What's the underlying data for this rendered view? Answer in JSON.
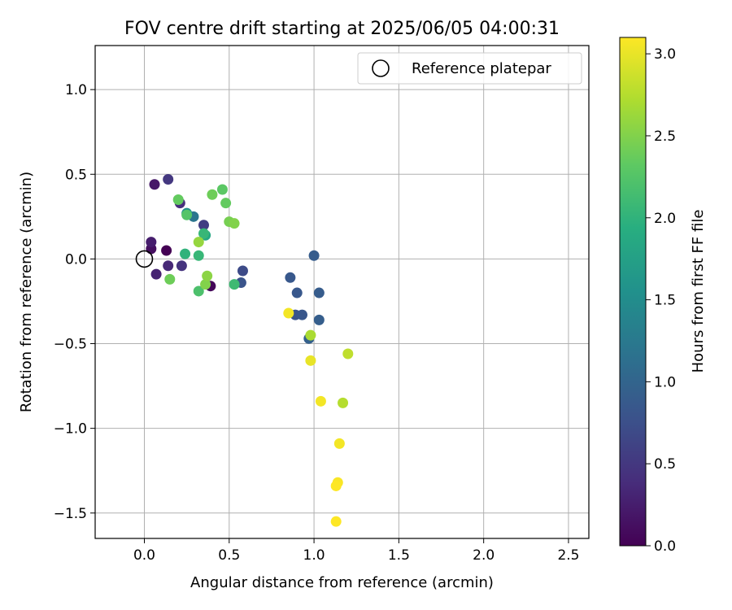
{
  "chart_data": {
    "type": "scatter",
    "title": "FOV centre drift starting at 2025/06/05 04:00:31",
    "xlabel": "Angular distance from reference (arcmin)",
    "ylabel": "Rotation from reference (arcmin)",
    "xlim": [
      -0.29,
      2.62
    ],
    "ylim": [
      -1.65,
      1.26
    ],
    "xticks": [
      0.0,
      0.5,
      1.0,
      1.5,
      2.0,
      2.5
    ],
    "xtick_labels": [
      "0.0",
      "0.5",
      "1.0",
      "1.5",
      "2.0",
      "2.5"
    ],
    "yticks": [
      1.0,
      0.5,
      0.0,
      -0.5,
      -1.0,
      -1.5
    ],
    "ytick_labels": [
      "1.0",
      "0.5",
      "0.0",
      "−0.5",
      "−1.0",
      "−1.5"
    ],
    "grid": true,
    "legend": {
      "placement": "top-right",
      "entries": [
        "Reference platepar"
      ]
    },
    "reference_point": {
      "x": 0.0,
      "y": 0.0
    },
    "colormap": "viridis",
    "colorbar": {
      "label": "Hours from first FF file",
      "range": [
        0.0,
        3.1
      ],
      "ticks": [
        0.0,
        0.5,
        1.0,
        1.5,
        2.0,
        2.5,
        3.0
      ],
      "tick_labels": [
        "0.0",
        "0.5",
        "1.0",
        "1.5",
        "2.0",
        "2.5",
        "3.0"
      ]
    },
    "points": [
      {
        "x": 0.13,
        "y": 0.05,
        "hours": 0.0
      },
      {
        "x": 0.39,
        "y": -0.16,
        "hours": 0.05
      },
      {
        "x": 0.04,
        "y": 0.06,
        "hours": 0.12
      },
      {
        "x": 0.06,
        "y": 0.44,
        "hours": 0.2
      },
      {
        "x": 0.04,
        "y": 0.1,
        "hours": 0.25
      },
      {
        "x": 0.07,
        "y": -0.09,
        "hours": 0.3
      },
      {
        "x": 0.14,
        "y": -0.04,
        "hours": 0.35
      },
      {
        "x": 0.21,
        "y": 0.33,
        "hours": 0.4
      },
      {
        "x": 0.22,
        "y": -0.04,
        "hours": 0.45
      },
      {
        "x": 0.14,
        "y": 0.47,
        "hours": 0.5
      },
      {
        "x": 0.35,
        "y": 0.2,
        "hours": 0.55
      },
      {
        "x": 0.58,
        "y": -0.07,
        "hours": 0.7
      },
      {
        "x": 0.57,
        "y": -0.14,
        "hours": 0.8
      },
      {
        "x": 0.86,
        "y": -0.11,
        "hours": 0.85
      },
      {
        "x": 0.9,
        "y": -0.2,
        "hours": 0.85
      },
      {
        "x": 0.89,
        "y": -0.33,
        "hours": 0.8
      },
      {
        "x": 0.93,
        "y": -0.33,
        "hours": 0.82
      },
      {
        "x": 1.0,
        "y": 0.02,
        "hours": 0.9
      },
      {
        "x": 1.03,
        "y": -0.2,
        "hours": 0.9
      },
      {
        "x": 1.03,
        "y": -0.36,
        "hours": 0.92
      },
      {
        "x": 0.97,
        "y": -0.47,
        "hours": 0.95
      },
      {
        "x": 0.29,
        "y": 0.25,
        "hours": 1.2
      },
      {
        "x": 0.25,
        "y": 0.27,
        "hours": 1.55
      },
      {
        "x": 0.36,
        "y": 0.14,
        "hours": 1.85
      },
      {
        "x": 0.24,
        "y": 0.03,
        "hours": 2.0
      },
      {
        "x": 0.32,
        "y": 0.02,
        "hours": 2.05
      },
      {
        "x": 0.35,
        "y": 0.15,
        "hours": 2.05
      },
      {
        "x": 0.53,
        "y": -0.15,
        "hours": 2.1
      },
      {
        "x": 0.32,
        "y": -0.19,
        "hours": 2.2
      },
      {
        "x": 0.25,
        "y": 0.26,
        "hours": 2.25
      },
      {
        "x": 0.2,
        "y": 0.35,
        "hours": 2.35
      },
      {
        "x": 0.46,
        "y": 0.41,
        "hours": 2.3
      },
      {
        "x": 0.48,
        "y": 0.33,
        "hours": 2.35
      },
      {
        "x": 0.4,
        "y": 0.38,
        "hours": 2.4
      },
      {
        "x": 0.15,
        "y": -0.12,
        "hours": 2.4
      },
      {
        "x": 0.5,
        "y": 0.22,
        "hours": 2.45
      },
      {
        "x": 0.53,
        "y": 0.21,
        "hours": 2.5
      },
      {
        "x": 0.36,
        "y": -0.15,
        "hours": 2.5
      },
      {
        "x": 0.37,
        "y": -0.1,
        "hours": 2.55
      },
      {
        "x": 0.32,
        "y": 0.1,
        "hours": 2.6
      },
      {
        "x": 0.98,
        "y": -0.45,
        "hours": 2.7
      },
      {
        "x": 1.2,
        "y": -0.56,
        "hours": 2.8
      },
      {
        "x": 1.17,
        "y": -0.85,
        "hours": 2.75
      },
      {
        "x": 0.85,
        "y": -0.32,
        "hours": 3.05
      },
      {
        "x": 0.98,
        "y": -0.6,
        "hours": 3.0
      },
      {
        "x": 1.04,
        "y": -0.84,
        "hours": 3.05
      },
      {
        "x": 1.15,
        "y": -1.09,
        "hours": 3.05
      },
      {
        "x": 1.14,
        "y": -1.32,
        "hours": 3.08
      },
      {
        "x": 1.13,
        "y": -1.34,
        "hours": 3.1
      },
      {
        "x": 1.13,
        "y": -1.55,
        "hours": 3.1
      }
    ]
  }
}
